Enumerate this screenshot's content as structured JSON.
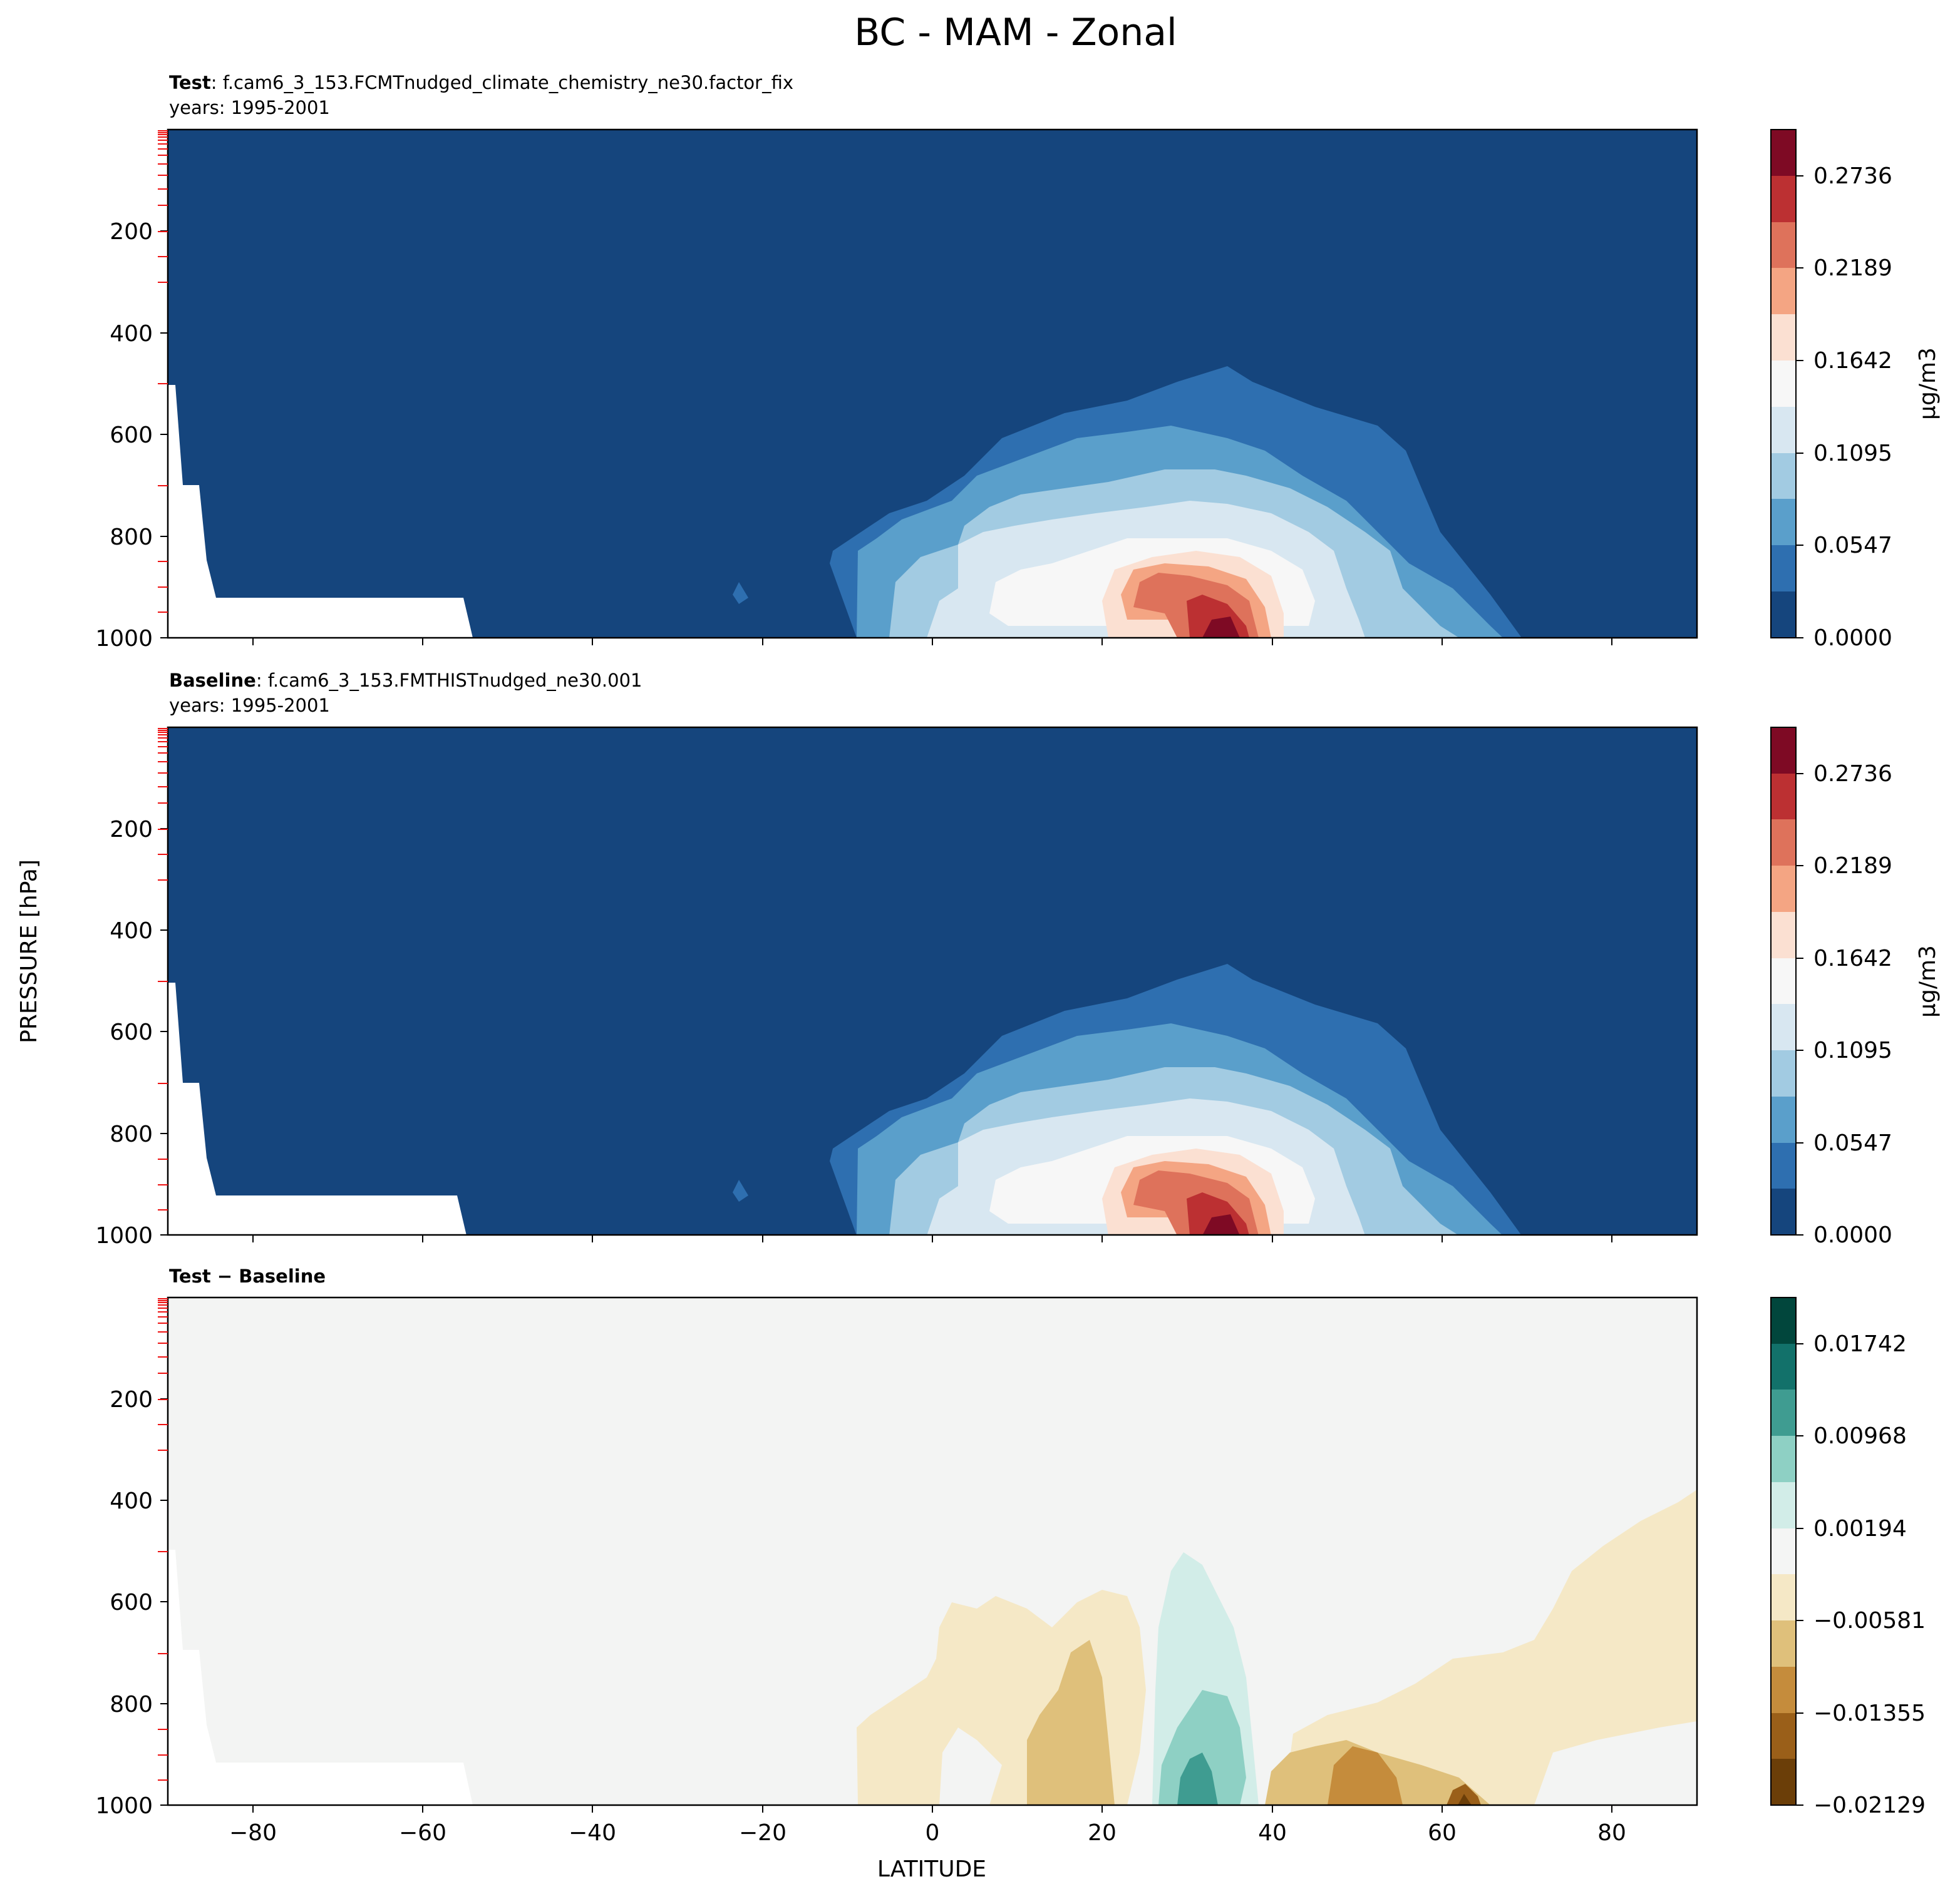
{
  "figure": {
    "title": "BC - MAM - Zonal",
    "ylabel": "PRESSURE [hPa]",
    "xlabel": "LATITUDE"
  },
  "colors": {
    "ocean_blue": "#15457d",
    "diff_background": "#f3f4f3"
  },
  "chart_data": [
    {
      "id": "test",
      "type": "contour",
      "header_bold": "Test",
      "header_text": ": f.cam6_3_153.FCMTnudged_climate_chemistry_ne30.factor_fix",
      "subheader": "years: 1995-2001",
      "xlim": [
        -90,
        90
      ],
      "ylim": [
        1000,
        0
      ],
      "x_ticks": [
        -80,
        -60,
        -40,
        -20,
        0,
        20,
        40,
        60,
        80
      ],
      "y_ticks": [
        200,
        400,
        600,
        800,
        1000
      ],
      "colorbar_label": "μg/m3",
      "colorbar_tick_labels": [
        "0.0000",
        "0.0547",
        "0.1095",
        "0.1642",
        "0.2189",
        "0.2736"
      ],
      "colorbar_colors": [
        "#15457d",
        "#2e6fb0",
        "#5a9fcb",
        "#a2cbe2",
        "#d8e7f1",
        "#f7f7f7",
        "#fbe0d2",
        "#f4a583",
        "#de725b",
        "#bc3032",
        "#7e0a24"
      ],
      "max_value": 0.3,
      "peak_latitude": 35,
      "peak_pressure": 990
    },
    {
      "id": "baseline",
      "type": "contour",
      "header_bold": "Baseline",
      "header_text": ": f.cam6_3_153.FMTHISTnudged_ne30.001",
      "subheader": "years: 1995-2001",
      "xlim": [
        -90,
        90
      ],
      "ylim": [
        1000,
        0
      ],
      "x_ticks": [
        -80,
        -60,
        -40,
        -20,
        0,
        20,
        40,
        60,
        80
      ],
      "y_ticks": [
        200,
        400,
        600,
        800,
        1000
      ],
      "colorbar_label": "μg/m3",
      "colorbar_tick_labels": [
        "0.0000",
        "0.0547",
        "0.1095",
        "0.1642",
        "0.2189",
        "0.2736"
      ],
      "colorbar_colors": [
        "#15457d",
        "#2e6fb0",
        "#5a9fcb",
        "#a2cbe2",
        "#d8e7f1",
        "#f7f7f7",
        "#fbe0d2",
        "#f4a583",
        "#de725b",
        "#bc3032",
        "#7e0a24"
      ],
      "max_value": 0.3,
      "peak_latitude": 35,
      "peak_pressure": 990
    },
    {
      "id": "difference",
      "type": "contour",
      "header_bold": "Test − Baseline",
      "header_text": "",
      "subheader": "",
      "xlim": [
        -90,
        90
      ],
      "ylim": [
        1000,
        0
      ],
      "x_ticks": [
        -80,
        -60,
        -40,
        -20,
        0,
        20,
        40,
        60,
        80
      ],
      "y_ticks": [
        200,
        400,
        600,
        800,
        1000
      ],
      "colorbar_label": "",
      "colorbar_tick_labels": [
        "−0.02129",
        "−0.01355",
        "−0.00581",
        "0.00194",
        "0.00968",
        "0.01742"
      ],
      "colorbar_colors": [
        "#6b3e08",
        "#9a5f19",
        "#c58c3c",
        "#dfc07b",
        "#f5e8c6",
        "#f4f5f4",
        "#d2ede8",
        "#8ed0c4",
        "#3f9c91",
        "#12716a",
        "#01463c"
      ],
      "min_value": -0.024,
      "max_value": 0.022
    }
  ]
}
